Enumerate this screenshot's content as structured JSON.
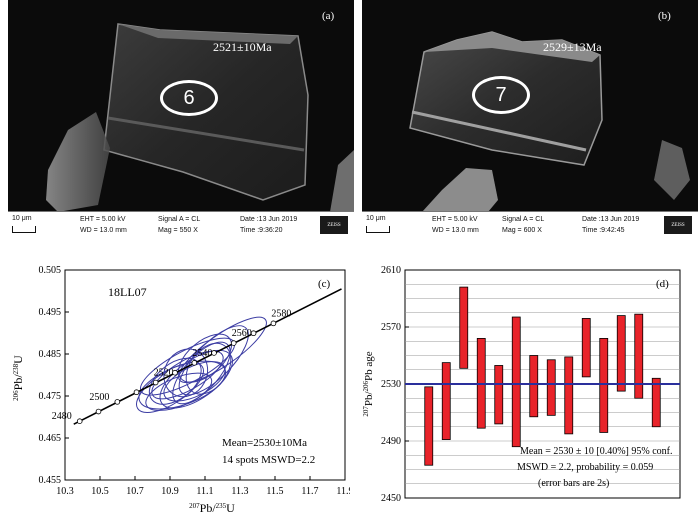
{
  "panel_a": {
    "label": "(a)",
    "age": "2521±10Ma",
    "spot": "6",
    "scale": "10 μm",
    "eht": "EHT = 5.00 kV",
    "wd": "WD = 13.0 mm",
    "signal": "Signal A = CL",
    "mag": "Mag =    550 X",
    "date": "Date :13 Jun 2019",
    "time": "Time :9:36:20",
    "brand": "ZEISS"
  },
  "panel_b": {
    "label": "(b)",
    "age": "2529±13Ma",
    "spot": "7",
    "scale": "10 μm",
    "eht": "EHT = 5.00 kV",
    "wd": "WD = 13.0 mm",
    "signal": "Signal A = CL",
    "mag": "Mag =    600 X",
    "date": "Date :13 Jun 2019",
    "time": "Time :9:42:45",
    "brand": "ZEISS"
  },
  "panel_c": {
    "label": "(c)",
    "sample": "18LL07",
    "xlabel_sup": "207",
    "xlabel_a": "Pb/",
    "xlabel_sup2": "235",
    "xlabel_b": "U",
    "ylabel_sup": "206",
    "ylabel_a": "Pb/",
    "ylabel_sup2": "238",
    "ylabel_b": "U",
    "stat1": "Mean=2530±10Ma",
    "stat2": "14 spots  MSWD=2.2"
  },
  "panel_d": {
    "label": "(d)",
    "ylabel_sup": "207",
    "ylabel_a": "Pb/",
    "ylabel_sup2": "206",
    "ylabel_b": "Pb age",
    "stat1": "Mean = 2530 ± 10  [0.40%]  95% conf.",
    "stat2": "MSWD = 2.2, probability = 0.059",
    "stat3": "(error bars are 2s)"
  },
  "chart_data": [
    {
      "type": "scatter",
      "subtype": "concordia",
      "xlim": [
        10.3,
        11.9
      ],
      "ylim": [
        0.455,
        0.505
      ],
      "xticks": [
        "10.3",
        "10.5",
        "10.7",
        "10.9",
        "11.1",
        "11.3",
        "11.5",
        "11.7",
        "11.9"
      ],
      "yticks": [
        "0.455",
        "0.465",
        "0.475",
        "0.485",
        "0.495",
        "0.505"
      ],
      "concordia_points": [
        {
          "age": "2480",
          "x": 10.384,
          "y": 0.469
        },
        {
          "age": "2500",
          "x": 10.599,
          "y": 0.4736
        },
        {
          "age": "2520",
          "x": 10.818,
          "y": 0.4782
        },
        {
          "age": "2540",
          "x": 11.039,
          "y": 0.4829
        },
        {
          "age": "2560",
          "x": 11.264,
          "y": 0.4876
        },
        {
          "age": "2580",
          "x": 11.491,
          "y": 0.4923
        }
      ],
      "ellipses": [
        {
          "x": 10.93,
          "y": 0.4785,
          "rx": 0.17,
          "ry": 0.0042,
          "rot": -38
        },
        {
          "x": 11.0,
          "y": 0.48,
          "rx": 0.23,
          "ry": 0.0035,
          "rot": -30
        },
        {
          "x": 10.97,
          "y": 0.4776,
          "rx": 0.26,
          "ry": 0.0046,
          "rot": -20
        },
        {
          "x": 11.08,
          "y": 0.4805,
          "rx": 0.22,
          "ry": 0.004,
          "rot": -48
        },
        {
          "x": 11.0,
          "y": 0.482,
          "rx": 0.3,
          "ry": 0.0038,
          "rot": -28
        },
        {
          "x": 11.1,
          "y": 0.484,
          "rx": 0.18,
          "ry": 0.004,
          "rot": -40
        },
        {
          "x": 10.95,
          "y": 0.476,
          "rx": 0.2,
          "ry": 0.0034,
          "rot": -22
        },
        {
          "x": 11.05,
          "y": 0.479,
          "rx": 0.24,
          "ry": 0.0046,
          "rot": -35
        },
        {
          "x": 11.12,
          "y": 0.4815,
          "rx": 0.16,
          "ry": 0.0045,
          "rot": -55
        },
        {
          "x": 10.99,
          "y": 0.4805,
          "rx": 0.14,
          "ry": 0.005,
          "rot": -62
        },
        {
          "x": 11.2,
          "y": 0.486,
          "rx": 0.3,
          "ry": 0.0036,
          "rot": -35
        },
        {
          "x": 10.9,
          "y": 0.477,
          "rx": 0.22,
          "ry": 0.0038,
          "rot": -33
        },
        {
          "x": 11.04,
          "y": 0.4785,
          "rx": 0.19,
          "ry": 0.0035,
          "rot": -26
        },
        {
          "x": 11.15,
          "y": 0.4835,
          "rx": 0.26,
          "ry": 0.0042,
          "rot": -45
        }
      ],
      "colors": {
        "ellipse": "#3b3ca3",
        "curve": "#000000"
      }
    },
    {
      "type": "bar",
      "subtype": "weighted-mean",
      "ylim": [
        2450,
        2610
      ],
      "yticks": [
        "2450",
        "2490",
        "2530",
        "2570",
        "2610"
      ],
      "mean": 2530,
      "bars": [
        {
          "low": 2473,
          "high": 2528
        },
        {
          "low": 2491,
          "high": 2545
        },
        {
          "low": 2541,
          "high": 2598
        },
        {
          "low": 2499,
          "high": 2562
        },
        {
          "low": 2502,
          "high": 2543
        },
        {
          "low": 2486,
          "high": 2577
        },
        {
          "low": 2507,
          "high": 2550
        },
        {
          "low": 2508,
          "high": 2547
        },
        {
          "low": 2495,
          "high": 2549
        },
        {
          "low": 2535,
          "high": 2576
        },
        {
          "low": 2496,
          "high": 2562
        },
        {
          "low": 2525,
          "high": 2578
        },
        {
          "low": 2520,
          "high": 2579
        },
        {
          "low": 2500,
          "high": 2534
        }
      ],
      "colors": {
        "bar": "#e8232a",
        "mean": "#2a2f9c"
      }
    }
  ]
}
